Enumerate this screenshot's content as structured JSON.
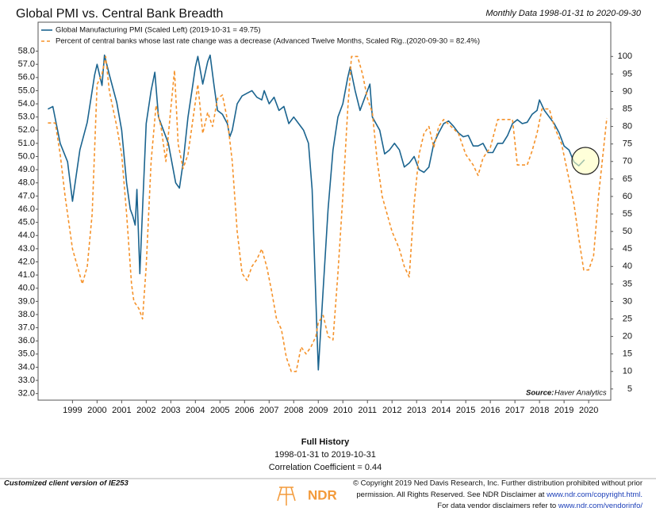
{
  "chart_data": {
    "type": "line",
    "title": "Global PMI vs. Central Bank Breadth",
    "subtitle": "Monthly Data 1998-01-31 to 2020-09-30",
    "source_label": "Source:",
    "source": "Haver Analytics",
    "xlim": [
      1997.6,
      2020.9
    ],
    "xticks": [
      1999,
      2000,
      2001,
      2002,
      2003,
      2004,
      2005,
      2006,
      2007,
      2008,
      2009,
      2010,
      2011,
      2012,
      2013,
      2014,
      2015,
      2016,
      2017,
      2018,
      2019,
      2020
    ],
    "ylim": [
      31.5,
      60.2
    ],
    "yticks": [
      {
        "value": 32,
        "label": "32.0"
      },
      {
        "value": 33,
        "label": "33.0"
      },
      {
        "value": 34,
        "label": "34.0"
      },
      {
        "value": 35,
        "label": "35.0"
      },
      {
        "value": 36,
        "label": "36.0"
      },
      {
        "value": 37,
        "label": "37.0"
      },
      {
        "value": 38,
        "label": "38.0"
      },
      {
        "value": 39,
        "label": "39.0"
      },
      {
        "value": 40,
        "label": "40.0"
      },
      {
        "value": 41,
        "label": "41.0"
      },
      {
        "value": 42,
        "label": "42.0"
      },
      {
        "value": 43,
        "label": "43.0"
      },
      {
        "value": 44,
        "label": "44.0"
      },
      {
        "value": 45,
        "label": "45.0"
      },
      {
        "value": 46,
        "label": "46.0"
      },
      {
        "value": 47,
        "label": "47.0"
      },
      {
        "value": 48,
        "label": "48.0"
      },
      {
        "value": 49,
        "label": "49.0"
      },
      {
        "value": 50,
        "label": "50.0"
      },
      {
        "value": 51,
        "label": "51.0"
      },
      {
        "value": 52,
        "label": "52.0"
      },
      {
        "value": 53,
        "label": "53.0"
      },
      {
        "value": 54,
        "label": "54.0"
      },
      {
        "value": 55,
        "label": "55.0"
      },
      {
        "value": 56,
        "label": "56.0"
      },
      {
        "value": 57,
        "label": "57.0"
      },
      {
        "value": 58,
        "label": "58.0"
      }
    ],
    "y2lim": [
      1.8,
      109.8
    ],
    "y2ticks": [
      5,
      10,
      15,
      20,
      25,
      30,
      35,
      40,
      45,
      50,
      55,
      60,
      65,
      70,
      75,
      80,
      85,
      90,
      95,
      100
    ],
    "series": [
      {
        "name": "Global Manufacturing PMI (Scaled Left) (2019-10-31 = 49.75)",
        "color": "#1b648f",
        "dashed": false,
        "x": [
          1998.0,
          1998.2,
          1998.5,
          1998.8,
          1999.0,
          1999.3,
          1999.6,
          1999.9,
          2000.0,
          2000.2,
          2000.3,
          2000.5,
          2000.8,
          2001.0,
          2001.2,
          2001.35,
          2001.45,
          2001.55,
          2001.62,
          2001.74,
          2001.85,
          2002.0,
          2002.2,
          2002.35,
          2002.5,
          2002.7,
          2002.9,
          2003.0,
          2003.2,
          2003.35,
          2003.5,
          2003.7,
          2003.9,
          2004.0,
          2004.1,
          2004.3,
          2004.5,
          2004.6,
          2004.75,
          2004.9,
          2005.1,
          2005.3,
          2005.4,
          2005.5,
          2005.7,
          2005.9,
          2006.1,
          2006.3,
          2006.5,
          2006.7,
          2006.8,
          2007.0,
          2007.2,
          2007.4,
          2007.6,
          2007.8,
          2008.0,
          2008.2,
          2008.4,
          2008.6,
          2008.75,
          2008.85,
          2008.95,
          2009.0,
          2009.2,
          2009.4,
          2009.6,
          2009.8,
          2010.0,
          2010.2,
          2010.3,
          2010.5,
          2010.7,
          2010.9,
          2011.1,
          2011.2,
          2011.5,
          2011.7,
          2011.9,
          2012.1,
          2012.3,
          2012.5,
          2012.7,
          2012.9,
          2013.1,
          2013.3,
          2013.5,
          2013.7,
          2013.9,
          2014.1,
          2014.3,
          2014.5,
          2014.7,
          2014.9,
          2015.1,
          2015.3,
          2015.5,
          2015.7,
          2015.9,
          2016.1,
          2016.3,
          2016.5,
          2016.7,
          2016.9,
          2017.1,
          2017.3,
          2017.5,
          2017.7,
          2017.9,
          2018.0,
          2018.2,
          2018.4,
          2018.6,
          2018.8,
          2019.0,
          2019.2,
          2019.4,
          2019.6,
          2019.83
        ],
        "values": [
          53.6,
          53.8,
          51.0,
          49.6,
          46.6,
          50.5,
          52.6,
          56.2,
          57.0,
          55.4,
          57.7,
          56.2,
          54.1,
          52.0,
          48.0,
          46.0,
          45.5,
          44.8,
          47.5,
          41.1,
          46.0,
          52.5,
          55.0,
          56.4,
          53.0,
          52.0,
          51.0,
          50.0,
          48.0,
          47.6,
          49.5,
          53.0,
          55.5,
          56.8,
          57.6,
          55.5,
          57.2,
          57.7,
          55.5,
          53.5,
          53.2,
          52.5,
          51.5,
          52.0,
          54.0,
          54.6,
          54.8,
          55.0,
          54.5,
          54.3,
          55.0,
          54.0,
          54.5,
          53.5,
          53.8,
          52.5,
          53.0,
          52.5,
          52.0,
          51.0,
          47.5,
          42.0,
          36.5,
          33.8,
          40.0,
          46.0,
          50.5,
          53.0,
          54.0,
          56.0,
          56.8,
          55.0,
          53.5,
          54.5,
          55.5,
          53.0,
          52.0,
          50.2,
          50.5,
          51.0,
          50.5,
          49.2,
          49.5,
          50.0,
          49.0,
          48.8,
          49.2,
          51.0,
          51.8,
          52.5,
          52.7,
          52.3,
          51.8,
          51.5,
          51.6,
          50.8,
          50.8,
          51.0,
          50.3,
          50.3,
          51.0,
          51.0,
          51.6,
          52.5,
          52.8,
          52.5,
          52.6,
          53.2,
          53.5,
          54.3,
          53.5,
          53.0,
          52.5,
          51.8,
          50.8,
          50.5,
          49.6,
          49.3,
          49.75
        ]
      },
      {
        "name": "Percent of central banks whose last rate change was a decrease (Advanced Twelve Months, Scaled Rig..(2020-09-30 = 82.4%)",
        "color": "#f5922a",
        "dashed": true,
        "axis": "y2",
        "x": [
          1998.0,
          1998.3,
          1998.5,
          1998.7,
          1999.0,
          1999.2,
          1999.4,
          1999.6,
          1999.8,
          2000.0,
          2000.2,
          2000.35,
          2000.5,
          2000.8,
          2001.0,
          2001.2,
          2001.4,
          2001.5,
          2001.7,
          2001.85,
          2002.0,
          2002.2,
          2002.4,
          2002.6,
          2002.8,
          2003.0,
          2003.15,
          2003.3,
          2003.5,
          2003.7,
          2003.9,
          2004.1,
          2004.3,
          2004.5,
          2004.7,
          2004.9,
          2005.1,
          2005.3,
          2005.5,
          2005.7,
          2005.9,
          2006.1,
          2006.3,
          2006.5,
          2006.7,
          2006.9,
          2007.1,
          2007.3,
          2007.5,
          2007.7,
          2007.9,
          2008.1,
          2008.3,
          2008.5,
          2008.7,
          2008.9,
          2009.0,
          2009.2,
          2009.4,
          2009.6,
          2009.8,
          2010.0,
          2010.2,
          2010.35,
          2010.6,
          2010.8,
          2011.0,
          2011.2,
          2011.4,
          2011.6,
          2011.8,
          2012.0,
          2012.3,
          2012.5,
          2012.7,
          2012.9,
          2013.1,
          2013.3,
          2013.5,
          2013.7,
          2013.9,
          2014.1,
          2014.4,
          2014.7,
          2015.0,
          2015.3,
          2015.5,
          2015.7,
          2016.0,
          2016.3,
          2016.6,
          2016.9,
          2017.1,
          2017.5,
          2017.7,
          2017.9,
          2018.1,
          2018.4,
          2018.6,
          2018.9,
          2019.2,
          2019.4,
          2019.6,
          2019.8,
          2020.0,
          2020.2,
          2020.4,
          2020.74
        ],
        "values": [
          81,
          81,
          72,
          60,
          45,
          40,
          35,
          40,
          55,
          92,
          95,
          100,
          90,
          80,
          72,
          55,
          35,
          30,
          28,
          25,
          40,
          70,
          86,
          80,
          70,
          85,
          96,
          75,
          68,
          72,
          82,
          92,
          78,
          84,
          80,
          88,
          89,
          82,
          70,
          50,
          38,
          36,
          40,
          42,
          45,
          40,
          33,
          25,
          22,
          14,
          10,
          10,
          17,
          15,
          17,
          20,
          24,
          26,
          20,
          19,
          38,
          60,
          85,
          100,
          100,
          95,
          88,
          84,
          70,
          60,
          55,
          50,
          45,
          40,
          37,
          58,
          72,
          78,
          80,
          74,
          80,
          82,
          80,
          78,
          72,
          69,
          66,
          71,
          74,
          82,
          82,
          82,
          69,
          69,
          73,
          78,
          85,
          85,
          80,
          75,
          65,
          58,
          48,
          39,
          39,
          43,
          60,
          82.4
        ]
      }
    ]
  },
  "footer": {
    "heading": "Full History",
    "range": "1998-01-31 to 2019-10-31",
    "correlation": "Correlation Coefficient = 0.44",
    "client": "Customized client version of IE253",
    "copyright_1": "© Copyright 2019 Ned Davis Research, Inc. Further distribution prohibited without prior",
    "copyright_2": "permission. All Rights Reserved. See NDR Disclaimer at",
    "copyright_link": "www.ndr.com/copyright.html.",
    "vendor": "For data vendor disclaimers refer to",
    "vendor_link": "www.ndr.com/vendorinfo/",
    "logo": "NDR"
  }
}
